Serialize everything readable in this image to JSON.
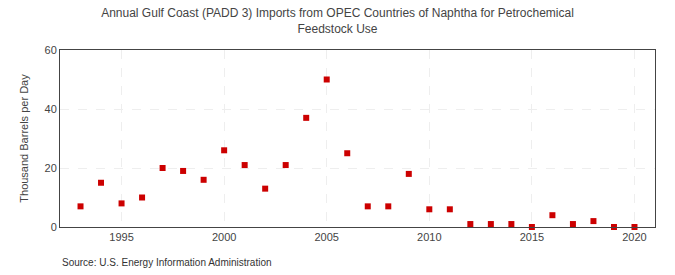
{
  "chart_data": {
    "type": "scatter",
    "title": "Annual Gulf Coast (PADD 3) Imports from OPEC Countries of Naphtha for Petrochemical\nFeedstock Use",
    "ylabel": "Thousand Barrels per Day",
    "annotations": [
      "Source: U.S. Energy Information Administration"
    ],
    "x": [
      1993,
      1994,
      1995,
      1996,
      1997,
      1998,
      1999,
      2000,
      2001,
      2002,
      2003,
      2004,
      2005,
      2006,
      2007,
      2008,
      2009,
      2010,
      2011,
      2012,
      2013,
      2014,
      2015,
      2016,
      2017,
      2018,
      2019,
      2020
    ],
    "values": [
      7,
      15,
      8,
      10,
      20,
      19,
      16,
      26,
      21,
      13,
      21,
      37,
      50,
      25,
      7,
      7,
      18,
      6,
      6,
      1,
      1,
      1,
      0,
      4,
      1,
      2,
      0,
      0
    ],
    "color": "#cc0000",
    "marker": "square",
    "xlim": [
      1992,
      2021
    ],
    "ylim": [
      0,
      60
    ],
    "xticks": [
      1995,
      2000,
      2005,
      2010,
      2015,
      2020
    ],
    "yticks": [
      0,
      20,
      40,
      60
    ],
    "grid": true
  }
}
